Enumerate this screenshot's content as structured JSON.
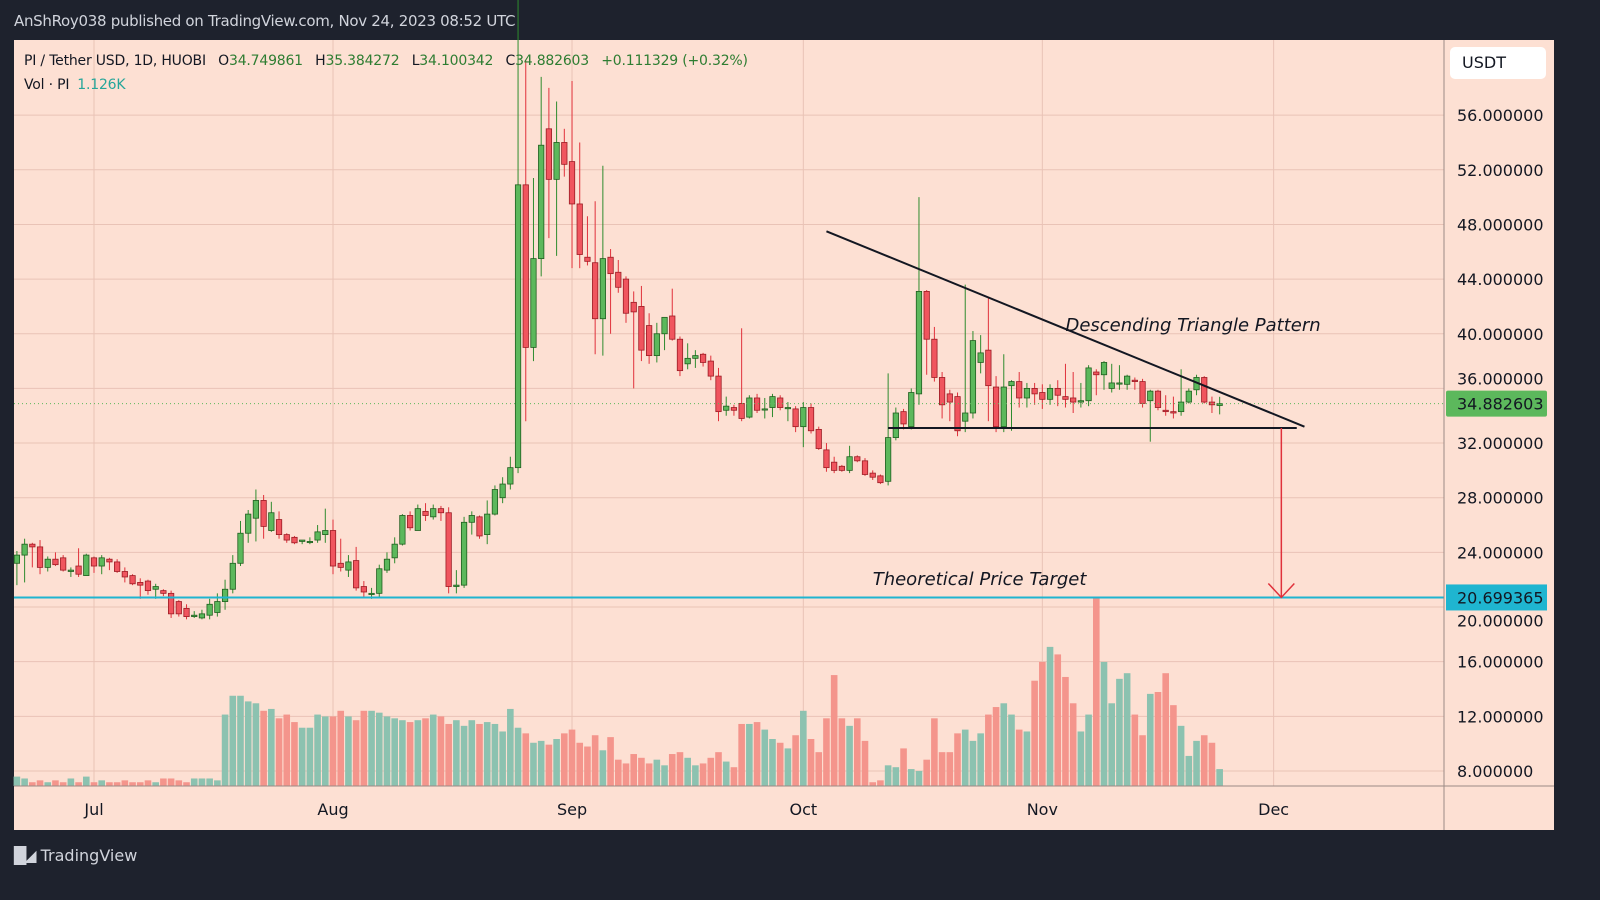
{
  "header": {
    "publisher_line": "AnShRoy038 published on TradingView.com, Nov 24, 2023 08:52 UTC"
  },
  "legend": {
    "symbol": "PI / Tether USD, 1D, HUOBI",
    "open_label": "O",
    "open": "34.749861",
    "high_label": "H",
    "high": "35.384272",
    "low_label": "L",
    "low": "34.100342",
    "close_label": "C",
    "close": "34.882603",
    "change": "+0.111329 (+0.32%)",
    "volume_label": "Vol · PI",
    "volume": "1.126K"
  },
  "currency_button": "USDT",
  "footer": {
    "brand": "TradingView",
    "logo_text": "17"
  },
  "colors": {
    "background": "#fde0d3",
    "up": "#5cb85c",
    "down": "#f0555e",
    "target_line": "#1fb5d0",
    "last_price_badge": "#5cb85c",
    "volume_up": "#8cc2b0",
    "volume_down": "#f4958c"
  },
  "chart_data": {
    "type": "candlestick",
    "title": "",
    "ylim": [
      6.9,
      61.5
    ],
    "grid": true,
    "y_ticks": [
      "56.000000",
      "52.000000",
      "48.000000",
      "44.000000",
      "40.000000",
      "36.000000",
      "32.000000",
      "28.000000",
      "24.000000",
      "20.000000",
      "16.000000",
      "12.000000",
      "8.000000"
    ],
    "x_ticks": [
      {
        "label": "Jul",
        "date": "2023-07-01"
      },
      {
        "label": "Aug",
        "date": "2023-08-01"
      },
      {
        "label": "Sep",
        "date": "2023-09-01"
      },
      {
        "label": "Oct",
        "date": "2023-10-01"
      },
      {
        "label": "Nov",
        "date": "2023-11-01"
      },
      {
        "label": "Dec",
        "date": "2023-12-01"
      }
    ],
    "last_price": {
      "label": "34.882603",
      "value": 34.882603
    },
    "target_price": {
      "label": "20.699365",
      "value": 20.699365
    },
    "annotations": {
      "triangle_label": "Descending Triangle Pattern",
      "target_label": "Theoretical Price Target",
      "resistance_line": [
        [
          "2023-10-04",
          47.5
        ],
        [
          "2023-12-05",
          33.2
        ]
      ],
      "support_line": [
        [
          "2023-10-12",
          33.1
        ],
        [
          "2023-12-04",
          33.1
        ]
      ],
      "arrow": [
        [
          "2023-12-02",
          33.1
        ],
        [
          "2023-12-02",
          20.7
        ]
      ]
    },
    "ohlc": [
      [
        "2023-06-21",
        23.2,
        24.1,
        21.6,
        23.8
      ],
      [
        "2023-06-22",
        23.8,
        25.0,
        21.8,
        24.6
      ],
      [
        "2023-06-23",
        24.6,
        24.7,
        22.9,
        24.4
      ],
      [
        "2023-06-24",
        24.4,
        24.9,
        22.4,
        22.9
      ],
      [
        "2023-06-25",
        22.9,
        23.7,
        22.6,
        23.5
      ],
      [
        "2023-06-26",
        23.5,
        24.0,
        23.0,
        23.1
      ],
      [
        "2023-06-27",
        23.6,
        23.8,
        22.6,
        22.7
      ],
      [
        "2023-06-28",
        22.6,
        22.9,
        22.2,
        22.7
      ],
      [
        "2023-06-29",
        23.0,
        24.3,
        22.2,
        22.4
      ],
      [
        "2023-06-30",
        22.3,
        23.9,
        22.3,
        23.8
      ],
      [
        "2023-07-01",
        23.6,
        23.7,
        22.5,
        23.0
      ],
      [
        "2023-07-02",
        23.0,
        23.8,
        22.4,
        23.6
      ],
      [
        "2023-07-03",
        23.5,
        23.6,
        22.7,
        23.3
      ],
      [
        "2023-07-04",
        23.3,
        23.5,
        22.5,
        22.6
      ],
      [
        "2023-07-05",
        22.6,
        22.9,
        21.8,
        22.2
      ],
      [
        "2023-07-06",
        22.3,
        22.4,
        21.6,
        21.7
      ],
      [
        "2023-07-07",
        21.8,
        22.1,
        20.6,
        21.6
      ],
      [
        "2023-07-08",
        21.9,
        22.0,
        20.9,
        21.2
      ],
      [
        "2023-07-09",
        21.3,
        21.7,
        20.6,
        21.5
      ],
      [
        "2023-07-10",
        21.2,
        21.3,
        20.8,
        21.0
      ],
      [
        "2023-07-11",
        21.0,
        21.2,
        19.2,
        19.5
      ],
      [
        "2023-07-12",
        20.4,
        20.5,
        19.3,
        19.5
      ],
      [
        "2023-07-13",
        19.9,
        20.2,
        19.1,
        19.3
      ],
      [
        "2023-07-14",
        19.3,
        19.7,
        19.2,
        19.4
      ],
      [
        "2023-07-15",
        19.2,
        19.8,
        19.1,
        19.5
      ],
      [
        "2023-07-16",
        19.4,
        20.6,
        19.1,
        20.2
      ],
      [
        "2023-07-17",
        19.6,
        21.0,
        19.3,
        20.4
      ],
      [
        "2023-07-18",
        20.4,
        22.0,
        19.8,
        21.3
      ],
      [
        "2023-07-19",
        21.3,
        23.8,
        21.0,
        23.2
      ],
      [
        "2023-07-20",
        23.2,
        26.3,
        23.0,
        25.4
      ],
      [
        "2023-07-21",
        25.4,
        27.1,
        24.7,
        26.8
      ],
      [
        "2023-07-22",
        26.5,
        28.6,
        24.8,
        27.8
      ],
      [
        "2023-07-23",
        27.8,
        28.2,
        25.0,
        25.9
      ],
      [
        "2023-07-24",
        25.6,
        27.7,
        25.5,
        26.9
      ],
      [
        "2023-07-25",
        26.4,
        27.0,
        25.0,
        25.3
      ],
      [
        "2023-07-26",
        25.3,
        25.4,
        24.7,
        24.9
      ],
      [
        "2023-07-27",
        25.1,
        25.2,
        24.6,
        24.7
      ],
      [
        "2023-07-28",
        24.8,
        24.9,
        24.6,
        24.9
      ],
      [
        "2023-07-29",
        24.8,
        25.1,
        24.6,
        24.8
      ],
      [
        "2023-07-30",
        24.9,
        26.0,
        24.7,
        25.5
      ],
      [
        "2023-07-31",
        25.3,
        27.2,
        24.7,
        25.6
      ],
      [
        "2023-08-01",
        25.6,
        26.4,
        22.4,
        23.0
      ],
      [
        "2023-08-02",
        23.2,
        25.0,
        22.6,
        22.9
      ],
      [
        "2023-08-03",
        22.7,
        23.8,
        22.2,
        23.3
      ],
      [
        "2023-08-04",
        23.4,
        24.4,
        21.2,
        21.4
      ],
      [
        "2023-08-05",
        21.5,
        21.9,
        20.7,
        21.1
      ],
      [
        "2023-08-06",
        21.0,
        21.4,
        20.6,
        21.0
      ],
      [
        "2023-08-07",
        21.0,
        23.1,
        20.7,
        22.8
      ],
      [
        "2023-08-08",
        22.7,
        24.0,
        22.5,
        23.5
      ],
      [
        "2023-08-09",
        23.6,
        25.1,
        23.2,
        24.6
      ],
      [
        "2023-08-10",
        24.6,
        26.8,
        24.5,
        26.7
      ],
      [
        "2023-08-11",
        26.7,
        27.0,
        25.6,
        25.8
      ],
      [
        "2023-08-12",
        25.6,
        27.5,
        25.6,
        27.2
      ],
      [
        "2023-08-13",
        27.0,
        27.6,
        26.3,
        26.7
      ],
      [
        "2023-08-14",
        26.6,
        27.5,
        26.4,
        27.2
      ],
      [
        "2023-08-15",
        27.2,
        27.4,
        26.3,
        26.9
      ],
      [
        "2023-08-16",
        26.9,
        27.3,
        21.0,
        21.5
      ],
      [
        "2023-08-17",
        21.5,
        22.7,
        21.0,
        21.6
      ],
      [
        "2023-08-18",
        21.6,
        26.6,
        21.4,
        26.2
      ],
      [
        "2023-08-19",
        26.2,
        27.0,
        25.3,
        26.7
      ],
      [
        "2023-08-20",
        26.6,
        26.7,
        25.0,
        25.2
      ],
      [
        "2023-08-21",
        25.3,
        27.8,
        24.6,
        26.8
      ],
      [
        "2023-08-22",
        26.8,
        28.9,
        26.7,
        28.6
      ],
      [
        "2023-08-23",
        28.0,
        29.5,
        27.6,
        29.0
      ],
      [
        "2023-08-24",
        29.0,
        31.0,
        28.6,
        30.2
      ],
      [
        "2023-08-25",
        30.2,
        66.0,
        29.8,
        50.9
      ],
      [
        "2023-08-26",
        50.9,
        60.0,
        33.6,
        39.0
      ],
      [
        "2023-08-27",
        39.0,
        51.4,
        38.0,
        45.5
      ],
      [
        "2023-08-28",
        45.5,
        58.8,
        44.2,
        53.8
      ],
      [
        "2023-08-29",
        55.0,
        58.0,
        47.0,
        51.3
      ],
      [
        "2023-08-30",
        51.3,
        57.0,
        45.7,
        54.0
      ],
      [
        "2023-08-31",
        54.0,
        55.0,
        51.5,
        52.4
      ],
      [
        "2023-09-01",
        52.6,
        58.5,
        44.8,
        49.5
      ],
      [
        "2023-09-02",
        49.5,
        54.0,
        44.8,
        45.8
      ],
      [
        "2023-09-03",
        45.6,
        48.6,
        45.0,
        45.3
      ],
      [
        "2023-09-04",
        45.2,
        49.7,
        38.5,
        41.1
      ],
      [
        "2023-09-05",
        41.1,
        52.3,
        38.4,
        45.5
      ],
      [
        "2023-09-06",
        45.6,
        46.2,
        40.0,
        44.4
      ],
      [
        "2023-09-07",
        44.5,
        45.4,
        43.0,
        43.4
      ],
      [
        "2023-09-08",
        44.0,
        44.2,
        40.8,
        41.5
      ],
      [
        "2023-09-09",
        42.3,
        43.1,
        36.0,
        41.6
      ],
      [
        "2023-09-10",
        42.0,
        43.5,
        38.0,
        38.8
      ],
      [
        "2023-09-11",
        40.6,
        41.5,
        37.8,
        38.4
      ],
      [
        "2023-09-12",
        38.4,
        40.8,
        37.9,
        40.0
      ],
      [
        "2023-09-13",
        40.0,
        41.2,
        38.8,
        41.2
      ],
      [
        "2023-09-14",
        41.3,
        43.3,
        39.5,
        39.6
      ],
      [
        "2023-09-15",
        39.6,
        39.8,
        36.9,
        37.3
      ],
      [
        "2023-09-16",
        37.8,
        39.3,
        37.4,
        38.2
      ],
      [
        "2023-09-17",
        38.2,
        38.8,
        37.5,
        38.4
      ],
      [
        "2023-09-18",
        38.5,
        38.6,
        37.6,
        37.9
      ],
      [
        "2023-09-19",
        38.0,
        38.4,
        36.6,
        36.9
      ],
      [
        "2023-09-20",
        36.9,
        37.5,
        33.6,
        34.3
      ],
      [
        "2023-09-21",
        34.4,
        35.4,
        34.0,
        34.7
      ],
      [
        "2023-09-22",
        34.6,
        34.8,
        34.0,
        34.4
      ],
      [
        "2023-09-23",
        34.9,
        40.4,
        33.6,
        33.8
      ],
      [
        "2023-09-24",
        33.9,
        35.5,
        33.8,
        35.3
      ],
      [
        "2023-09-25",
        35.3,
        35.6,
        34.2,
        34.4
      ],
      [
        "2023-09-26",
        34.5,
        35.3,
        33.8,
        34.5
      ],
      [
        "2023-09-27",
        34.6,
        35.6,
        33.9,
        35.4
      ],
      [
        "2023-09-28",
        35.3,
        35.5,
        34.4,
        34.6
      ],
      [
        "2023-09-29",
        34.6,
        35.0,
        33.6,
        34.6
      ],
      [
        "2023-09-30",
        34.5,
        34.7,
        32.8,
        33.2
      ],
      [
        "2023-10-01",
        33.2,
        35.0,
        31.7,
        34.6
      ],
      [
        "2023-10-02",
        34.6,
        34.9,
        32.7,
        32.9
      ],
      [
        "2023-10-03",
        33.0,
        33.2,
        31.5,
        31.6
      ],
      [
        "2023-10-04",
        31.5,
        32.0,
        29.9,
        30.2
      ],
      [
        "2023-10-05",
        30.6,
        31.0,
        29.8,
        30.0
      ],
      [
        "2023-10-06",
        30.3,
        30.4,
        29.9,
        30.0
      ],
      [
        "2023-10-07",
        30.0,
        31.8,
        29.8,
        31.0
      ],
      [
        "2023-10-08",
        31.0,
        31.1,
        30.6,
        30.7
      ],
      [
        "2023-10-09",
        30.7,
        30.9,
        29.6,
        29.7
      ],
      [
        "2023-10-10",
        29.8,
        30.0,
        29.3,
        29.5
      ],
      [
        "2023-10-11",
        29.6,
        29.7,
        29.0,
        29.1
      ],
      [
        "2023-10-12",
        29.2,
        37.1,
        28.9,
        32.4
      ],
      [
        "2023-10-13",
        32.4,
        34.6,
        32.2,
        34.2
      ],
      [
        "2023-10-14",
        34.3,
        34.5,
        33.0,
        33.4
      ],
      [
        "2023-10-15",
        33.2,
        36.0,
        33.0,
        35.7
      ],
      [
        "2023-10-16",
        35.6,
        50.0,
        34.8,
        43.1
      ],
      [
        "2023-10-17",
        43.1,
        43.2,
        37.0,
        39.6
      ],
      [
        "2023-10-18",
        39.6,
        40.5,
        36.5,
        36.8
      ],
      [
        "2023-10-19",
        36.8,
        37.2,
        33.8,
        34.8
      ],
      [
        "2023-10-20",
        35.6,
        35.9,
        33.6,
        35.0
      ],
      [
        "2023-10-21",
        35.4,
        35.7,
        32.5,
        32.9
      ],
      [
        "2023-10-22",
        33.6,
        43.6,
        32.8,
        34.2
      ],
      [
        "2023-10-23",
        34.2,
        40.2,
        33.8,
        39.5
      ],
      [
        "2023-10-24",
        37.9,
        39.9,
        37.1,
        38.6
      ],
      [
        "2023-10-25",
        38.8,
        42.6,
        33.6,
        36.2
      ],
      [
        "2023-10-26",
        36.1,
        36.9,
        32.8,
        33.2
      ],
      [
        "2023-10-27",
        33.2,
        38.5,
        32.8,
        36.1
      ],
      [
        "2023-10-28",
        36.2,
        36.6,
        32.9,
        36.5
      ],
      [
        "2023-10-29",
        36.5,
        37.2,
        34.6,
        35.3
      ],
      [
        "2023-10-30",
        35.3,
        36.4,
        34.6,
        36.0
      ],
      [
        "2023-10-31",
        36.0,
        36.4,
        34.8,
        35.6
      ],
      [
        "2023-11-01",
        35.7,
        36.3,
        34.5,
        35.2
      ],
      [
        "2023-11-02",
        35.2,
        36.3,
        34.8,
        36.0
      ],
      [
        "2023-11-03",
        36.0,
        36.6,
        34.7,
        35.5
      ],
      [
        "2023-11-04",
        35.4,
        37.8,
        34.6,
        35.2
      ],
      [
        "2023-11-05",
        35.3,
        37.2,
        34.2,
        35.0
      ],
      [
        "2023-11-06",
        35.0,
        36.4,
        34.6,
        35.1
      ],
      [
        "2023-11-07",
        35.1,
        37.7,
        34.7,
        37.5
      ],
      [
        "2023-11-08",
        37.2,
        37.4,
        35.5,
        37.0
      ],
      [
        "2023-11-09",
        37.0,
        38.0,
        35.9,
        37.9
      ],
      [
        "2023-11-10",
        36.0,
        37.8,
        35.7,
        36.4
      ],
      [
        "2023-11-11",
        36.4,
        37.7,
        35.9,
        36.4
      ],
      [
        "2023-11-12",
        36.3,
        37.0,
        35.9,
        36.9
      ],
      [
        "2023-11-13",
        36.6,
        36.8,
        35.9,
        36.5
      ],
      [
        "2023-11-14",
        36.5,
        36.7,
        34.6,
        34.9
      ],
      [
        "2023-11-15",
        35.1,
        35.9,
        32.1,
        35.8
      ],
      [
        "2023-11-16",
        35.8,
        35.9,
        34.4,
        34.6
      ],
      [
        "2023-11-17",
        34.4,
        35.5,
        34.0,
        34.3
      ],
      [
        "2023-11-18",
        34.3,
        35.4,
        33.8,
        34.2
      ],
      [
        "2023-11-19",
        34.3,
        37.4,
        34.0,
        35.0
      ],
      [
        "2023-11-20",
        35.0,
        36.0,
        34.9,
        35.8
      ],
      [
        "2023-11-21",
        35.9,
        37.0,
        35.5,
        36.8
      ],
      [
        "2023-11-22",
        36.8,
        36.9,
        34.9,
        35.0
      ],
      [
        "2023-11-23",
        35.0,
        35.4,
        34.2,
        34.8
      ],
      [
        "2023-11-24",
        34.749861,
        35.384272,
        34.100342,
        34.882603
      ]
    ],
    "volume_relative_percent": [
      5,
      4,
      2,
      3,
      2,
      3,
      2,
      4,
      2,
      5,
      2,
      3,
      2,
      2,
      3,
      2,
      2,
      3,
      2,
      4,
      4,
      3,
      2,
      4,
      4,
      4,
      3,
      38,
      48,
      48,
      45,
      44,
      40,
      41,
      36,
      38,
      34,
      31,
      31,
      38,
      37,
      37,
      40,
      37,
      35,
      40,
      40,
      39,
      37,
      36,
      35,
      34,
      35,
      36,
      38,
      37,
      33,
      35,
      32,
      35,
      33,
      34,
      33,
      29,
      41,
      31,
      28,
      23,
      24,
      22,
      25,
      28,
      30,
      23,
      21,
      27,
      19,
      26,
      14,
      12,
      17,
      15,
      12,
      14,
      11,
      17,
      18,
      15,
      11,
      12,
      15,
      18,
      13,
      10,
      33,
      33,
      34,
      30,
      25,
      23,
      20,
      27,
      40,
      25,
      18,
      36,
      59,
      36,
      32,
      36,
      24,
      2,
      3,
      11,
      10,
      20,
      9,
      8,
      14,
      36,
      18,
      18,
      28,
      30,
      24,
      28,
      38,
      42,
      44,
      38,
      30,
      29,
      56,
      66,
      74,
      70,
      58,
      44,
      29,
      38,
      100,
      66,
      44,
      57,
      60,
      38,
      27,
      49,
      50,
      60,
      43,
      32,
      16,
      24,
      27,
      23,
      9
    ]
  }
}
